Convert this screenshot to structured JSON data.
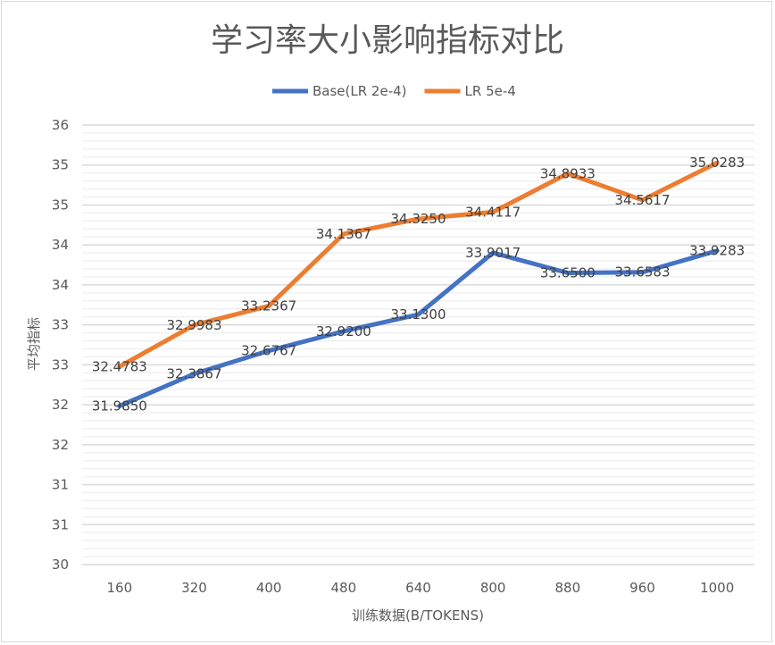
{
  "chart_data": {
    "type": "line",
    "title": "学习率大小影响指标对比",
    "xlabel": "训练数据(B/TOKENS)",
    "ylabel": "平均指标",
    "categories": [
      "160",
      "320",
      "400",
      "480",
      "640",
      "800",
      "880",
      "960",
      "1000"
    ],
    "ylim": [
      30,
      35.5
    ],
    "y_ticks": [
      30,
      30.5,
      31,
      31.5,
      32,
      32.5,
      33,
      33.5,
      34,
      34.5,
      35,
      35.5
    ],
    "y_tick_labels": [
      "30",
      "31",
      "31",
      "32",
      "32",
      "33",
      "33",
      "34",
      "34",
      "35",
      "35",
      "36"
    ],
    "grid": true,
    "legend": "top",
    "series": [
      {
        "name": "Base(LR 2e-4)",
        "color": "#4472c4",
        "values": [
          31.985,
          32.3867,
          32.6767,
          32.92,
          33.13,
          33.9017,
          33.65,
          33.6583,
          33.9283
        ],
        "labels": [
          "31.9850",
          "32.3867",
          "32.6767",
          "32.9200",
          "33.1300",
          "33.9017",
          "33.6500",
          "33.6583",
          "33.9283"
        ]
      },
      {
        "name": "LR 5e-4",
        "color": "#ed7d31",
        "values": [
          32.4783,
          32.9983,
          33.2367,
          34.1367,
          34.325,
          34.4117,
          34.8933,
          34.5617,
          35.0283
        ],
        "labels": [
          "32.4783",
          "32.9983",
          "33.2367",
          "34.1367",
          "34.3250",
          "34.4117",
          "34.8933",
          "34.5617",
          "35.0283"
        ]
      }
    ]
  }
}
